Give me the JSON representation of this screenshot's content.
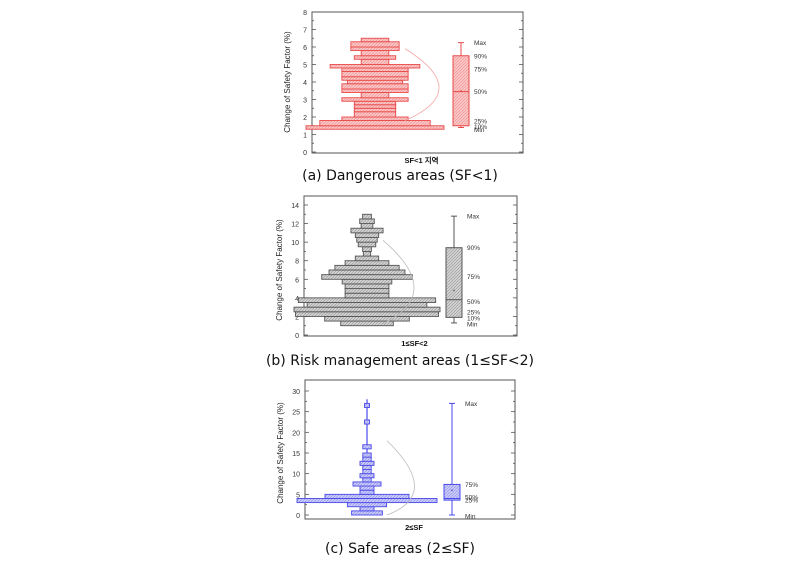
{
  "chart_data": [
    {
      "id": "a",
      "type": "histogram-boxplot",
      "caption": "(a) Dangerous areas (SF<1)",
      "xlabel": "SF<1 지역",
      "ylabel": "Change of Safety Factor (%)",
      "ylim": [
        0,
        8
      ],
      "yticks": [
        0,
        1,
        2,
        3,
        4,
        5,
        6,
        7,
        8
      ],
      "color": "#e84a4a",
      "fill": "#f9c4c4",
      "histogram": [
        {
          "y0": 1.3,
          "y1": 1.5,
          "width": 1.0
        },
        {
          "y0": 1.5,
          "y1": 1.8,
          "width": 0.8
        },
        {
          "y0": 1.8,
          "y1": 2.0,
          "width": 0.48
        },
        {
          "y0": 2.0,
          "y1": 2.3,
          "width": 0.3
        },
        {
          "y0": 2.3,
          "y1": 2.5,
          "width": 0.3
        },
        {
          "y0": 2.5,
          "y1": 2.7,
          "width": 0.3
        },
        {
          "y0": 2.7,
          "y1": 2.9,
          "width": 0.3
        },
        {
          "y0": 2.9,
          "y1": 3.1,
          "width": 0.48
        },
        {
          "y0": 3.1,
          "y1": 3.4,
          "width": 0.2
        },
        {
          "y0": 3.4,
          "y1": 3.6,
          "width": 0.48
        },
        {
          "y0": 3.6,
          "y1": 3.9,
          "width": 0.48
        },
        {
          "y0": 3.9,
          "y1": 4.1,
          "width": 0.4
        },
        {
          "y0": 4.1,
          "y1": 4.3,
          "width": 0.48
        },
        {
          "y0": 4.3,
          "y1": 4.6,
          "width": 0.48
        },
        {
          "y0": 4.6,
          "y1": 4.8,
          "width": 0.48
        },
        {
          "y0": 4.8,
          "y1": 5.0,
          "width": 0.65
        },
        {
          "y0": 5.0,
          "y1": 5.3,
          "width": 0.2
        },
        {
          "y0": 5.3,
          "y1": 5.5,
          "width": 0.3
        },
        {
          "y0": 5.5,
          "y1": 5.8,
          "width": 0.2
        },
        {
          "y0": 5.8,
          "y1": 6.0,
          "width": 0.35
        },
        {
          "y0": 6.0,
          "y1": 6.3,
          "width": 0.35
        },
        {
          "y0": 6.3,
          "y1": 6.5,
          "width": 0.2
        }
      ],
      "curve": [
        [
          1.8,
          0.4
        ],
        [
          3.5,
          0.58
        ],
        [
          5.9,
          0.26
        ]
      ],
      "box": {
        "min": 1.4,
        "p10": 1.5,
        "p25": 1.55,
        "p50": 3.45,
        "p75": 5.5,
        "p90": 5.5,
        "max": 6.25,
        "mean": 3.5
      },
      "box_labels": [
        {
          "text": "Max",
          "y": 6.25
        },
        {
          "text": "90%",
          "y": 5.5
        },
        {
          "text": "75%",
          "y": 4.75
        },
        {
          "text": "50%",
          "y": 3.45
        },
        {
          "text": "25%",
          "y": 1.78
        },
        {
          "text": "10%",
          "y": 1.45
        },
        {
          "text": "Min",
          "y": 1.3
        }
      ]
    },
    {
      "id": "b",
      "type": "histogram-boxplot",
      "caption": "(b) Risk management areas (1≤SF<2)",
      "xlabel": "1≤SF<2",
      "ylabel": "Change of Safety Factor (%)",
      "ylim": [
        0,
        14
      ],
      "yticks": [
        0,
        2,
        4,
        6,
        8,
        10,
        12,
        14
      ],
      "color": "#555555",
      "fill": "#cfcfcf",
      "histogram": [
        {
          "y0": 1.0,
          "y1": 1.5,
          "width": 0.36
        },
        {
          "y0": 1.5,
          "y1": 2.0,
          "width": 0.58
        },
        {
          "y0": 2.0,
          "y1": 2.5,
          "width": 0.98
        },
        {
          "y0": 2.5,
          "y1": 3.0,
          "width": 1.0
        },
        {
          "y0": 3.0,
          "y1": 3.5,
          "width": 0.82
        },
        {
          "y0": 3.5,
          "y1": 4.0,
          "width": 0.94
        },
        {
          "y0": 4.0,
          "y1": 4.5,
          "width": 0.3
        },
        {
          "y0": 4.5,
          "y1": 5.0,
          "width": 0.3
        },
        {
          "y0": 5.0,
          "y1": 5.5,
          "width": 0.3
        },
        {
          "y0": 5.5,
          "y1": 6.0,
          "width": 0.34
        },
        {
          "y0": 6.0,
          "y1": 6.5,
          "width": 0.62
        },
        {
          "y0": 6.5,
          "y1": 7.0,
          "width": 0.52
        },
        {
          "y0": 7.0,
          "y1": 7.5,
          "width": 0.44
        },
        {
          "y0": 7.5,
          "y1": 8.0,
          "width": 0.3
        },
        {
          "y0": 8.0,
          "y1": 8.5,
          "width": 0.16
        },
        {
          "y0": 8.5,
          "y1": 9.0,
          "width": 0.05
        },
        {
          "y0": 9.0,
          "y1": 9.5,
          "width": 0.06
        },
        {
          "y0": 9.5,
          "y1": 10.0,
          "width": 0.12
        },
        {
          "y0": 10.0,
          "y1": 10.5,
          "width": 0.14
        },
        {
          "y0": 10.5,
          "y1": 11.0,
          "width": 0.16
        },
        {
          "y0": 11.0,
          "y1": 11.5,
          "width": 0.22
        },
        {
          "y0": 11.5,
          "y1": 12.0,
          "width": 0.08
        },
        {
          "y0": 12.0,
          "y1": 12.5,
          "width": 0.1
        },
        {
          "y0": 12.5,
          "y1": 13.0,
          "width": 0.06
        }
      ],
      "curve": [
        [
          1.2,
          0.28
        ],
        [
          4.5,
          0.52
        ],
        [
          10.2,
          0.08
        ]
      ],
      "box": {
        "min": 1.3,
        "p10": 1.9,
        "p25": 1.95,
        "p50": 3.8,
        "p75": 6.5,
        "p90": 9.4,
        "max": 12.8,
        "mean": 4.8
      },
      "box_labels": [
        {
          "text": "Max",
          "y": 12.8
        },
        {
          "text": "90%",
          "y": 9.4
        },
        {
          "text": "75%",
          "y": 6.3
        },
        {
          "text": "50%",
          "y": 3.6
        },
        {
          "text": "25%",
          "y": 2.5
        },
        {
          "text": "10%",
          "y": 1.85
        },
        {
          "text": "Min",
          "y": 1.2
        }
      ]
    },
    {
      "id": "c",
      "type": "histogram-boxplot",
      "caption": "(c) Safe areas (2≤SF)",
      "xlabel": "2≤SF",
      "ylabel": "Change of Safety Factor (%)",
      "ylim": [
        0,
        30
      ],
      "yticks": [
        0,
        5,
        10,
        15,
        20,
        25,
        30
      ],
      "color": "#4a4ae8",
      "fill": "#c8c8f6",
      "histogram": [
        {
          "y0": 0.0,
          "y1": 1.0,
          "width": 0.22
        },
        {
          "y0": 1.0,
          "y1": 2.0,
          "width": 0.1
        },
        {
          "y0": 2.0,
          "y1": 3.0,
          "width": 0.28
        },
        {
          "y0": 3.0,
          "y1": 4.0,
          "width": 1.0
        },
        {
          "y0": 4.0,
          "y1": 5.0,
          "width": 0.6
        },
        {
          "y0": 5.0,
          "y1": 6.0,
          "width": 0.1
        },
        {
          "y0": 6.0,
          "y1": 7.0,
          "width": 0.1
        },
        {
          "y0": 7.0,
          "y1": 8.0,
          "width": 0.2
        },
        {
          "y0": 8.0,
          "y1": 9.0,
          "width": 0.06
        },
        {
          "y0": 9.0,
          "y1": 10.0,
          "width": 0.1
        },
        {
          "y0": 10.0,
          "y1": 11.0,
          "width": 0.06
        },
        {
          "y0": 11.0,
          "y1": 12.0,
          "width": 0.06
        },
        {
          "y0": 12.0,
          "y1": 13.0,
          "width": 0.1
        },
        {
          "y0": 13.0,
          "y1": 14.0,
          "width": 0.06
        },
        {
          "y0": 14.0,
          "y1": 15.0,
          "width": 0.06
        },
        {
          "y0": 16.0,
          "y1": 17.0,
          "width": 0.06
        },
        {
          "y0": 22.0,
          "y1": 23.0,
          "width": 0.035
        },
        {
          "y0": 26.0,
          "y1": 27.0,
          "width": 0.035
        }
      ],
      "curve": [
        [
          0.0,
          0.32
        ],
        [
          5.0,
          0.45
        ],
        [
          18.0,
          0.1
        ]
      ],
      "box": {
        "min": 0.0,
        "p10": 3.6,
        "p25": 3.6,
        "p50": 4.0,
        "p75": 7.4,
        "p90": 7.4,
        "max": 27.0,
        "mean": 6.0
      },
      "box_labels": [
        {
          "text": "Max",
          "y": 27.0
        },
        {
          "text": "75%",
          "y": 7.4
        },
        {
          "text": "50%",
          "y": 4.4
        },
        {
          "text": "25%",
          "y": 3.6
        },
        {
          "text": "Min",
          "y": -0.2
        }
      ]
    }
  ]
}
